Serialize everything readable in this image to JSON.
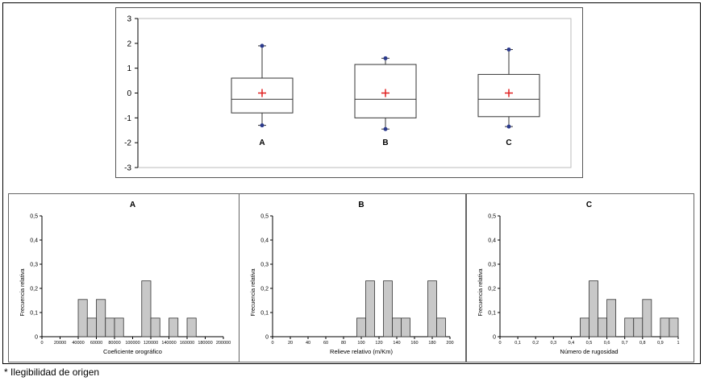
{
  "footnote": "* Ilegibilidad de origen",
  "chart_data": [
    {
      "type": "box",
      "title": "",
      "categories": [
        "A",
        "B",
        "C"
      ],
      "ylim": [
        -3,
        3
      ],
      "yticks": [
        3,
        2,
        1,
        0,
        -1,
        -2,
        -3
      ],
      "grid": false,
      "boxes": [
        {
          "label": "A",
          "min": -1.3,
          "q1": -0.8,
          "median": -0.25,
          "q3": 0.6,
          "max": 1.9,
          "mean": 0
        },
        {
          "label": "B",
          "min": -1.45,
          "q1": -1.0,
          "median": -0.25,
          "q3": 1.15,
          "max": 1.4,
          "mean": 0
        },
        {
          "label": "C",
          "min": -1.35,
          "q1": -0.95,
          "median": -0.25,
          "q3": 0.75,
          "max": 1.75,
          "mean": 0
        }
      ],
      "colors": {
        "box": "#333333",
        "whisker_point": "#2b3a8c",
        "mean_marker": "#e02020"
      }
    },
    {
      "type": "bar",
      "title": "A",
      "xlabel": "Coeficiente orográfico",
      "ylabel": "Frecuencia relativa",
      "xlim": [
        0,
        20000
      ],
      "ylim": [
        0,
        0.5
      ],
      "xticks": [
        "0",
        "20000",
        "40000",
        "60000",
        "80000",
        "100000",
        "120000",
        "140000",
        "160000",
        "180000",
        "200000"
      ],
      "yticks": [
        "0",
        "0,1",
        "0,2",
        "0,3",
        "0,4",
        "0,5"
      ],
      "bin_width": 1000,
      "bins": [
        {
          "x": 4000,
          "value": 0.154
        },
        {
          "x": 5000,
          "value": 0.077
        },
        {
          "x": 6000,
          "value": 0.154
        },
        {
          "x": 7000,
          "value": 0.077
        },
        {
          "x": 8000,
          "value": 0.077
        },
        {
          "x": 11000,
          "value": 0.231
        },
        {
          "x": 12000,
          "value": 0.077
        },
        {
          "x": 14000,
          "value": 0.077
        },
        {
          "x": 16000,
          "value": 0.077
        }
      ]
    },
    {
      "type": "bar",
      "title": "B",
      "xlabel": "Relieve relativo (m/Km)",
      "ylabel": "Frecuencia relativa",
      "xlim": [
        0,
        200
      ],
      "ylim": [
        0,
        0.5
      ],
      "xticks": [
        "0",
        "20",
        "40",
        "60",
        "80",
        "100",
        "120",
        "140",
        "160",
        "180",
        "200"
      ],
      "yticks": [
        "0",
        "0,1",
        "0,2",
        "0,3",
        "0,4",
        "0,5"
      ],
      "bin_width": 10,
      "bins": [
        {
          "x": 95,
          "value": 0.077
        },
        {
          "x": 105,
          "value": 0.231
        },
        {
          "x": 125,
          "value": 0.231
        },
        {
          "x": 135,
          "value": 0.077
        },
        {
          "x": 145,
          "value": 0.077
        },
        {
          "x": 175,
          "value": 0.231
        },
        {
          "x": 185,
          "value": 0.077
        }
      ]
    },
    {
      "type": "bar",
      "title": "C",
      "xlabel": "Número de rugosidad",
      "ylabel": "Frecuencia relativa",
      "xlim": [
        0,
        1
      ],
      "ylim": [
        0,
        0.5
      ],
      "xticks": [
        "0",
        "0,1",
        "0,2",
        "0,3",
        "0,4",
        "0,5",
        "0,6",
        "0,7",
        "0,8",
        "0,9",
        "1"
      ],
      "yticks": [
        "0",
        "0,1",
        "0,2",
        "0,3",
        "0,4",
        "0,5"
      ],
      "bin_width": 0.05,
      "bins": [
        {
          "x": 0.45,
          "value": 0.077
        },
        {
          "x": 0.5,
          "value": 0.231
        },
        {
          "x": 0.55,
          "value": 0.077
        },
        {
          "x": 0.6,
          "value": 0.154
        },
        {
          "x": 0.7,
          "value": 0.077
        },
        {
          "x": 0.75,
          "value": 0.077
        },
        {
          "x": 0.8,
          "value": 0.154
        },
        {
          "x": 0.9,
          "value": 0.077
        },
        {
          "x": 0.95,
          "value": 0.077
        }
      ]
    }
  ]
}
